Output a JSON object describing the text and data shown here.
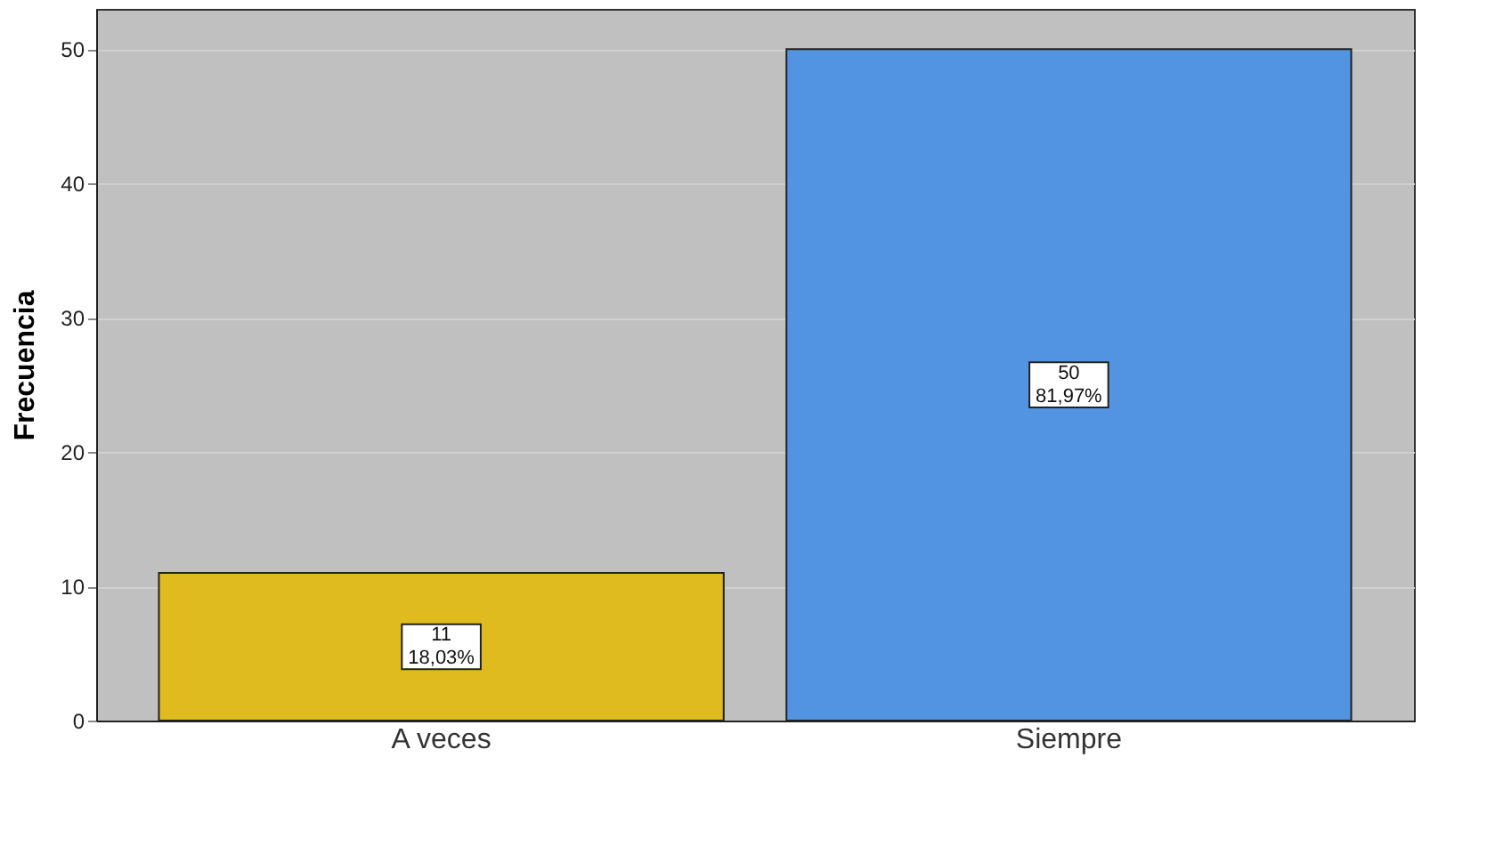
{
  "chart_data": {
    "type": "bar",
    "ylabel": "Frecuencia",
    "categories": [
      "A veces",
      "Siempre"
    ],
    "values": [
      11,
      50
    ],
    "colors": [
      "#e0bb1f",
      "#5294e2"
    ],
    "value_labels": [
      "11\n18,03%",
      "50\n81,97%"
    ],
    "ylim": [
      0,
      53
    ],
    "yticks": [
      0,
      10,
      20,
      30,
      40,
      50
    ],
    "grid": "y"
  }
}
